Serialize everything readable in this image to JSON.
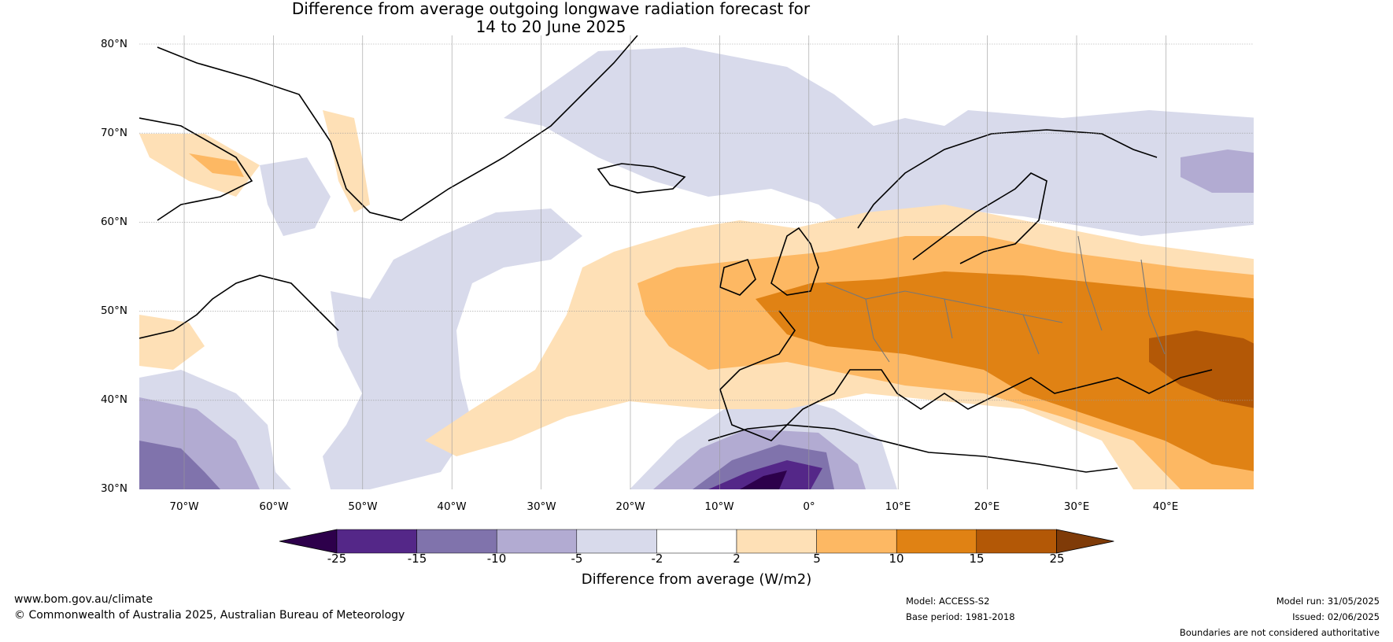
{
  "title": {
    "line1": "Difference from average outgoing longwave radiation forecast for",
    "line2": "14 to 20 June 2025"
  },
  "map": {
    "lat_labels": [
      "80°N",
      "70°N",
      "60°N",
      "50°N",
      "40°N",
      "30°N"
    ],
    "lon_labels": [
      "70°W",
      "60°W",
      "50°W",
      "40°W",
      "30°W",
      "20°W",
      "10°W",
      "0°",
      "10°E",
      "20°E",
      "30°E",
      "40°E"
    ],
    "extent": {
      "lon_min": -75,
      "lon_max": 50,
      "lat_min": 30,
      "lat_max": 81
    },
    "gridlines": true
  },
  "colorbar": {
    "ticks": [
      "-25",
      "-15",
      "-10",
      "-5",
      "-2",
      "2",
      "5",
      "10",
      "15",
      "25"
    ],
    "colors": [
      "#2d004b",
      "#542788",
      "#8073ac",
      "#b2abd2",
      "#d8daeb",
      "#ffffff",
      "#fee0b6",
      "#fdb863",
      "#e08214",
      "#b35806",
      "#7f3b08"
    ],
    "label": "Difference from average (W/m2)"
  },
  "footer": {
    "website": "www.bom.gov.au/climate",
    "copyright": "© Commonwealth of Australia 2025, Australian Bureau of Meteorology",
    "model": "Model: ACCESS-S2",
    "base_period": "Base period: 1981-2018",
    "model_run": "Model run: 31/05/2025",
    "issued": "Issued: 02/06/2025",
    "disclaimer": "Boundaries are not considered authoritative"
  }
}
